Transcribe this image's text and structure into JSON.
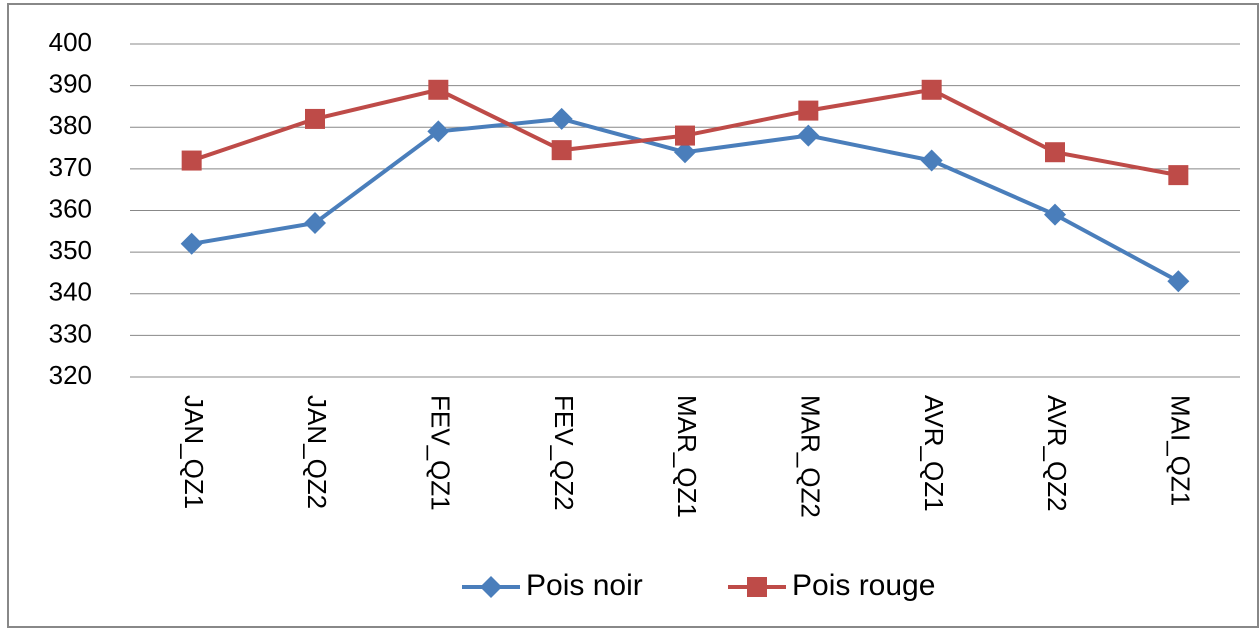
{
  "chart_data": {
    "type": "line",
    "categories": [
      "JAN_QZ1",
      "JAN_QZ2",
      "FEV_QZ1",
      "FEV_QZ2",
      "MAR_QZ1",
      "MAR_QZ2",
      "AVR_QZ1",
      "AVR_QZ2",
      "MAI_QZ1"
    ],
    "series": [
      {
        "name": "Pois noir",
        "color": "#4a7ebb",
        "marker": "diamond",
        "values": [
          352,
          357,
          379,
          382,
          374,
          378,
          372,
          359,
          343
        ]
      },
      {
        "name": "Pois rouge",
        "color": "#be4b48",
        "marker": "square",
        "values": [
          372,
          382,
          389,
          374.5,
          378,
          384,
          389,
          374,
          368.5
        ]
      }
    ],
    "ylim": [
      320,
      400
    ],
    "yticks": [
      320,
      330,
      340,
      350,
      360,
      370,
      380,
      390,
      400
    ],
    "grid": true,
    "legend": "bottom"
  }
}
